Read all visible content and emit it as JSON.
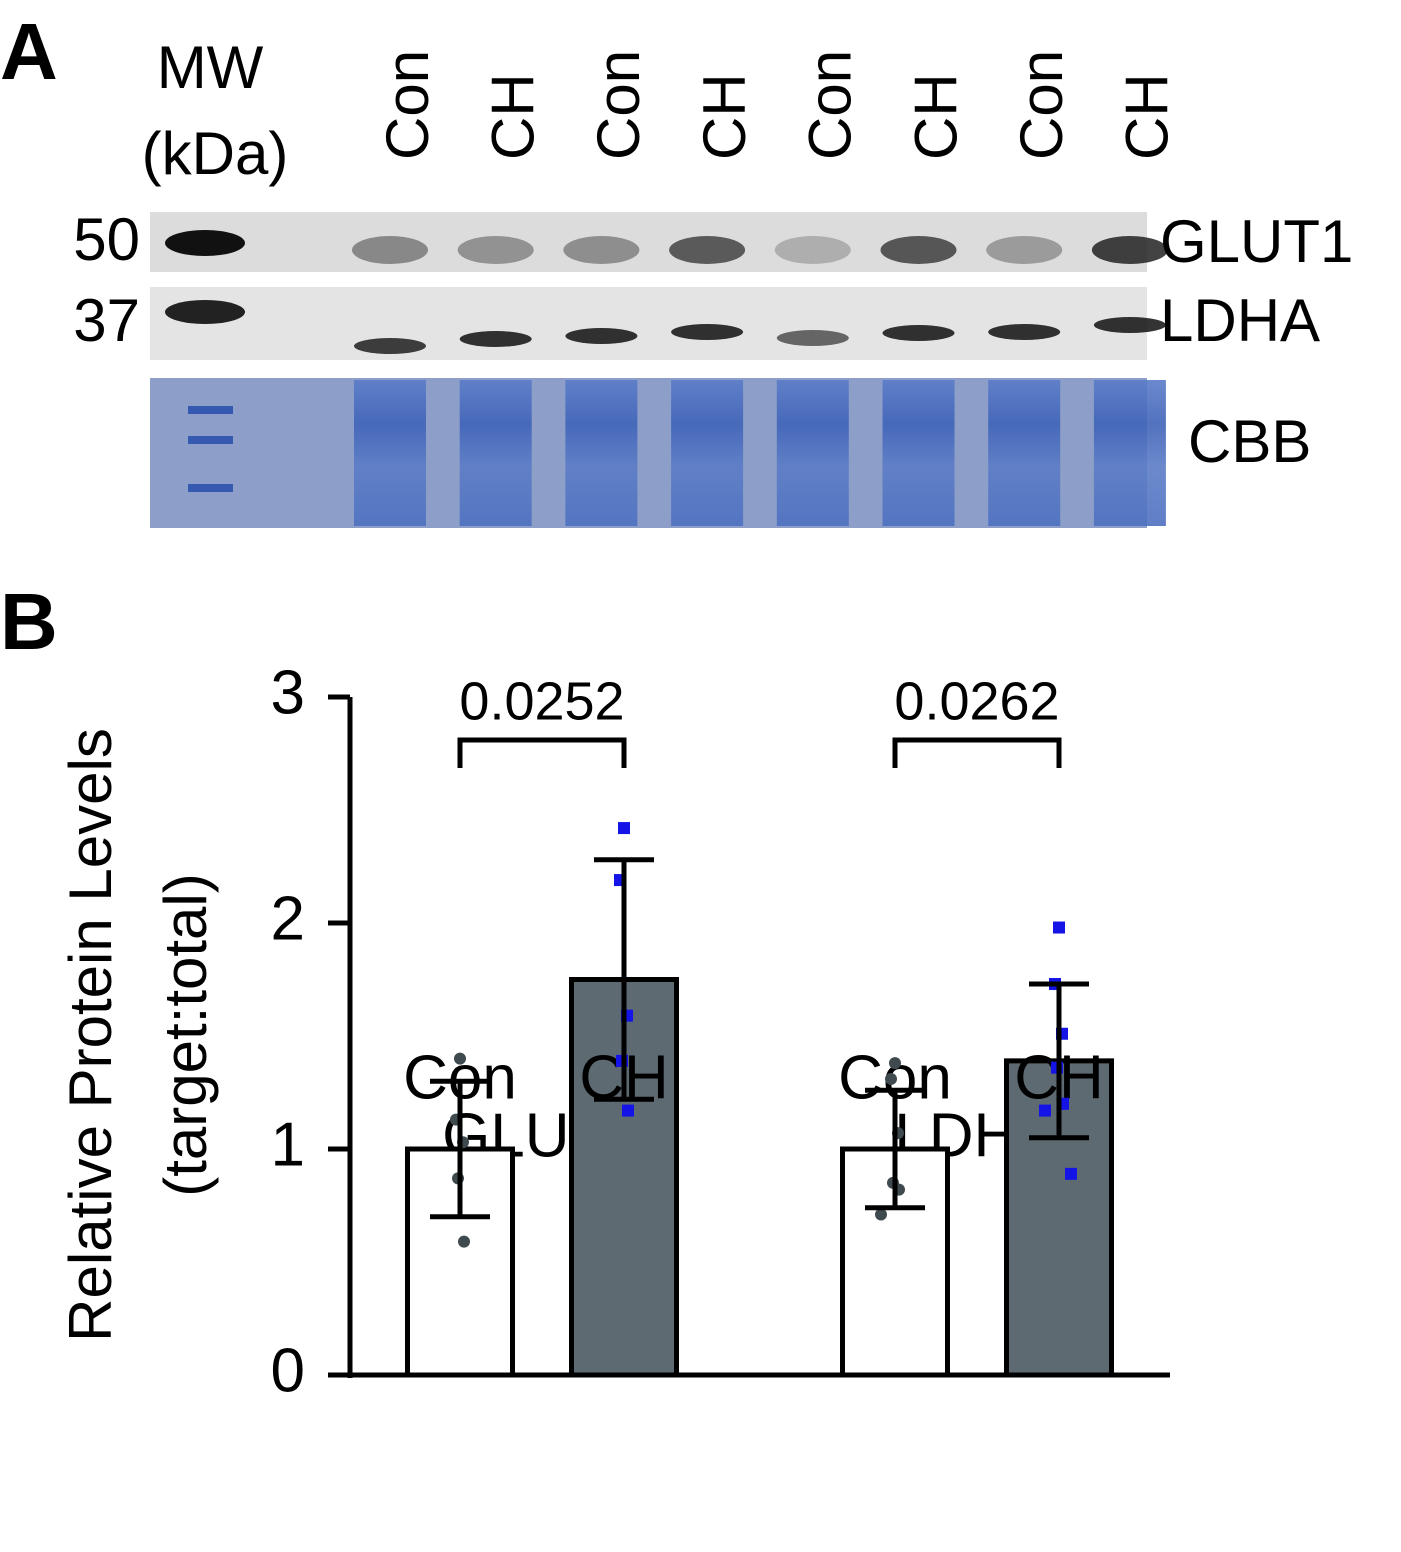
{
  "panel_a": {
    "label": "A",
    "mw_title": "MW",
    "mw_unit": "(kDa)",
    "lanes": [
      "Con",
      "CH",
      "Con",
      "CH",
      "Con",
      "CH",
      "Con",
      "CH"
    ],
    "markers": [
      "50",
      "37"
    ],
    "targets": [
      "GLUT1",
      "LDHA",
      "CBB"
    ]
  },
  "chart_data": {
    "type": "bar",
    "panel_label": "B",
    "ylabel": [
      "Relative Protein Levels",
      "(target:total)"
    ],
    "groups": [
      "GLUT1",
      "LDHA"
    ],
    "series": [
      {
        "name": "Con",
        "color": "#ffffff",
        "point_color": "#3f4a4f",
        "values": [
          1.0,
          1.0
        ],
        "errors": [
          0.3,
          0.26
        ],
        "points": [
          [
            1.4,
            1.13,
            1.03,
            0.87,
            0.59
          ],
          [
            1.38,
            1.31,
            1.07,
            0.85,
            0.82,
            0.71
          ]
        ]
      },
      {
        "name": "CH",
        "color": "#5d6a71",
        "point_color": "#1414e6",
        "values": [
          1.75,
          1.39
        ],
        "errors": [
          0.53,
          0.34
        ],
        "points": [
          [
            2.42,
            2.19,
            1.59,
            1.39,
            1.17
          ],
          [
            1.98,
            1.73,
            1.51,
            1.36,
            1.2,
            1.17,
            0.89
          ]
        ]
      }
    ],
    "p_values": [
      "0.0252",
      "0.0262"
    ],
    "ylim": [
      0,
      3
    ],
    "yticks": [
      0,
      1,
      2,
      3
    ]
  }
}
